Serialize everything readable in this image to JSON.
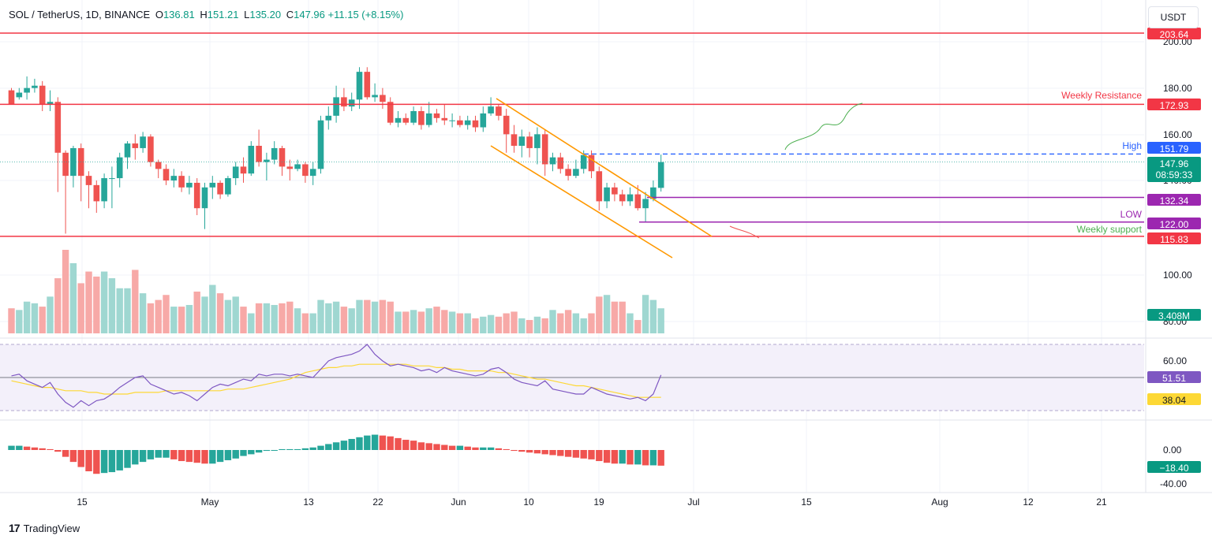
{
  "header": {
    "symbol": "SOL / TetherUS, 1D, BINANCE",
    "o_label": "O",
    "o": "136.81",
    "h_label": "H",
    "h": "151.21",
    "l_label": "L",
    "l": "135.20",
    "c_label": "C",
    "c": "147.96",
    "change": "+11.15 (+8.15%)"
  },
  "currency": "USDT",
  "brand": "TradingView",
  "colors": {
    "up": "#26a69a",
    "down": "#ef5350",
    "resistance": "#f23645",
    "high_line": "#2962ff",
    "purple": "#9c27b0",
    "channel": "#ff9800",
    "rsi": "#7e57c2",
    "rsi_ma": "#fdd835",
    "support_text": "#4caf50"
  },
  "chart_data": [
    {
      "type": "candlestick",
      "title": "SOL / TetherUS, 1D, BINANCE",
      "ylim": [
        90,
        210
      ],
      "y_ticks": [
        "200.00",
        "180.00",
        "160.00",
        "140.00",
        "100.00",
        "80.00"
      ],
      "x_ticks": [
        "15",
        "May",
        "13",
        "22",
        "Jun",
        "10",
        "19",
        "Jul",
        "15",
        "Aug",
        "12",
        "21"
      ],
      "candles": [
        [
          179,
          173,
          180,
          176
        ],
        [
          176,
          178,
          180,
          175
        ],
        [
          178,
          180,
          185,
          175
        ],
        [
          180,
          181,
          184,
          178
        ],
        [
          181,
          173,
          183,
          170
        ],
        [
          173,
          174,
          179,
          170
        ],
        [
          174,
          152,
          176,
          135
        ],
        [
          152,
          142,
          153,
          117
        ],
        [
          142,
          154,
          155,
          137
        ],
        [
          154,
          142,
          156,
          131
        ],
        [
          142,
          138,
          144,
          128
        ],
        [
          138,
          131,
          140,
          126
        ],
        [
          131,
          141,
          143,
          128
        ],
        [
          141,
          141,
          146,
          128
        ],
        [
          141,
          150,
          152,
          137
        ],
        [
          150,
          156,
          157,
          145
        ],
        [
          156,
          154,
          160,
          149
        ],
        [
          154,
          159,
          161,
          152
        ],
        [
          159,
          148,
          160,
          146
        ],
        [
          148,
          145,
          149,
          141
        ],
        [
          145,
          140,
          147,
          138
        ],
        [
          140,
          142,
          145,
          137
        ],
        [
          142,
          137,
          144,
          135
        ],
        [
          137,
          139,
          142,
          134
        ],
        [
          139,
          128,
          141,
          125
        ],
        [
          128,
          137,
          139,
          119
        ],
        [
          137,
          139,
          142,
          132
        ],
        [
          139,
          134,
          140,
          132
        ],
        [
          134,
          141,
          142,
          133
        ],
        [
          141,
          146,
          148,
          138
        ],
        [
          146,
          143,
          150,
          139
        ],
        [
          143,
          155,
          157,
          142
        ],
        [
          155,
          148,
          162,
          146
        ],
        [
          148,
          149,
          152,
          140
        ],
        [
          149,
          154,
          157,
          147
        ],
        [
          154,
          146,
          155,
          142
        ],
        [
          146,
          145,
          149,
          140
        ],
        [
          145,
          147,
          149,
          144
        ],
        [
          147,
          142,
          148,
          139
        ],
        [
          142,
          145,
          148,
          138
        ],
        [
          145,
          166,
          168,
          143
        ],
        [
          166,
          168,
          172,
          162
        ],
        [
          168,
          176,
          181,
          165
        ],
        [
          176,
          172,
          180,
          170
        ],
        [
          172,
          175,
          178,
          170
        ],
        [
          175,
          187,
          189,
          171
        ],
        [
          187,
          176,
          189,
          175
        ],
        [
          176,
          177,
          182,
          174
        ],
        [
          177,
          174,
          180,
          171
        ],
        [
          174,
          165,
          176,
          164
        ],
        [
          165,
          167,
          170,
          163
        ],
        [
          167,
          165,
          169,
          164
        ],
        [
          165,
          170,
          172,
          164
        ],
        [
          170,
          164,
          172,
          162
        ],
        [
          164,
          169,
          174,
          163
        ],
        [
          169,
          167,
          171,
          165
        ],
        [
          167,
          166,
          173,
          164
        ],
        [
          166,
          166,
          169,
          163
        ],
        [
          166,
          164,
          168,
          163
        ],
        [
          164,
          166,
          168,
          162
        ],
        [
          166,
          163,
          168,
          161
        ],
        [
          163,
          169,
          172,
          161
        ],
        [
          169,
          172,
          176,
          168
        ],
        [
          172,
          168,
          173,
          166
        ],
        [
          168,
          160,
          171,
          152
        ],
        [
          160,
          155,
          164,
          152
        ],
        [
          155,
          159,
          162,
          150
        ],
        [
          159,
          154,
          161,
          150
        ],
        [
          154,
          160,
          163,
          147
        ],
        [
          160,
          147,
          162,
          142
        ],
        [
          147,
          150,
          152,
          144
        ],
        [
          150,
          145,
          152,
          143
        ],
        [
          145,
          142,
          147,
          140
        ],
        [
          142,
          145,
          149,
          141
        ],
        [
          145,
          151,
          153,
          143
        ],
        [
          151,
          144,
          153,
          141
        ],
        [
          144,
          131,
          146,
          127
        ],
        [
          131,
          137,
          139,
          128
        ],
        [
          137,
          134,
          139,
          131
        ],
        [
          134,
          131,
          136,
          129
        ],
        [
          131,
          134,
          137,
          129
        ],
        [
          134,
          128,
          138,
          127
        ],
        [
          128,
          132,
          135,
          122
        ],
        [
          132,
          137,
          140,
          131
        ],
        [
          136.8,
          147.96,
          151.21,
          135.2
        ]
      ],
      "levels": [
        {
          "label": "",
          "value": 203.64
        },
        {
          "label": "Weekly Resistance",
          "value": 172.93
        },
        {
          "label": "High",
          "value": 151.79
        },
        {
          "label": "",
          "value": 132.34
        },
        {
          "label": "LOW",
          "value": 122.0
        },
        {
          "label": "Weekly support",
          "value": 115.83
        }
      ],
      "last_price": "147.96",
      "countdown": "08:59:33"
    },
    {
      "type": "bar",
      "name": "Volume",
      "last_value": "3.408M",
      "values": [
        0.3,
        0.28,
        0.38,
        0.36,
        0.32,
        0.44,
        0.66,
        1.0,
        0.84,
        0.6,
        0.74,
        0.68,
        0.74,
        0.66,
        0.54,
        0.54,
        0.76,
        0.48,
        0.36,
        0.4,
        0.46,
        0.32,
        0.32,
        0.34,
        0.5,
        0.44,
        0.58,
        0.48,
        0.4,
        0.44,
        0.32,
        0.24,
        0.36,
        0.36,
        0.34,
        0.36,
        0.38,
        0.3,
        0.24,
        0.24,
        0.4,
        0.36,
        0.38,
        0.32,
        0.3,
        0.4,
        0.4,
        0.38,
        0.4,
        0.38,
        0.26,
        0.26,
        0.28,
        0.26,
        0.3,
        0.32,
        0.28,
        0.26,
        0.24,
        0.24,
        0.18,
        0.2,
        0.22,
        0.2,
        0.24,
        0.26,
        0.18,
        0.16,
        0.2,
        0.18,
        0.28,
        0.24,
        0.28,
        0.24,
        0.18,
        0.24,
        0.44,
        0.46,
        0.38,
        0.38,
        0.24,
        0.16,
        0.46,
        0.4,
        0.3
      ]
    },
    {
      "type": "line",
      "name": "RSI",
      "y_ticks": [
        "60.00"
      ],
      "rsi_value": "51.51",
      "rsi_ma_value": "38.04",
      "rsi": [
        51,
        52,
        48,
        46,
        44,
        47,
        40,
        35,
        32,
        36,
        33,
        36,
        37,
        40,
        44,
        47,
        50,
        51,
        46,
        44,
        42,
        40,
        41,
        39,
        36,
        40,
        44,
        46,
        45,
        47,
        49,
        48,
        52,
        51,
        52,
        52,
        51,
        52,
        51,
        50,
        55,
        60,
        62,
        63,
        64,
        66,
        70,
        64,
        60,
        57,
        58,
        57,
        56,
        54,
        55,
        53,
        56,
        54,
        53,
        52,
        51,
        52,
        55,
        56,
        53,
        49,
        47,
        46,
        45,
        48,
        43,
        42,
        41,
        40,
        40,
        44,
        42,
        40,
        39,
        38,
        37,
        38,
        36,
        40,
        51.51
      ],
      "rsi_ma": [
        48,
        47,
        46,
        45,
        44,
        44,
        43,
        42,
        42,
        42,
        41,
        41,
        40,
        40,
        40,
        40,
        41,
        41,
        41,
        41,
        42,
        42,
        42,
        42,
        42,
        42,
        42,
        42,
        43,
        43,
        43,
        44,
        45,
        46,
        47,
        48,
        49,
        51,
        53,
        54,
        55,
        56,
        56,
        57,
        57,
        58,
        58,
        58,
        58,
        58,
        58,
        58,
        57,
        57,
        57,
        56,
        56,
        55,
        55,
        54,
        54,
        54,
        54,
        53,
        53,
        52,
        51,
        50,
        49,
        49,
        48,
        47,
        46,
        45,
        45,
        44,
        43,
        42,
        41,
        40,
        39,
        38,
        38,
        38,
        38.04
      ],
      "band": [
        30,
        70
      ]
    },
    {
      "type": "bar",
      "name": "MACD histogram",
      "y_ticks": [
        "0.00",
        "-40.00"
      ],
      "last_value": "−18.40",
      "values": [
        5,
        5,
        4,
        3,
        2,
        1,
        -2,
        -8,
        -14,
        -20,
        -25,
        -28,
        -27,
        -26,
        -24,
        -21,
        -17,
        -14,
        -11,
        -9,
        -9,
        -11,
        -13,
        -14,
        -15,
        -16,
        -16,
        -14,
        -12,
        -10,
        -7,
        -5,
        -3,
        -1,
        0,
        1,
        1,
        1,
        2,
        3,
        5,
        7,
        9,
        11,
        13,
        15,
        17,
        18,
        17,
        16,
        14,
        12,
        11,
        9,
        8,
        7,
        6,
        5,
        5,
        4,
        3,
        3,
        3,
        2,
        1,
        -1,
        -2,
        -3,
        -4,
        -5,
        -6,
        -7,
        -8,
        -9,
        -10,
        -11,
        -13,
        -15,
        -16,
        -16,
        -17,
        -17,
        -18,
        -18,
        -18.4
      ]
    }
  ]
}
